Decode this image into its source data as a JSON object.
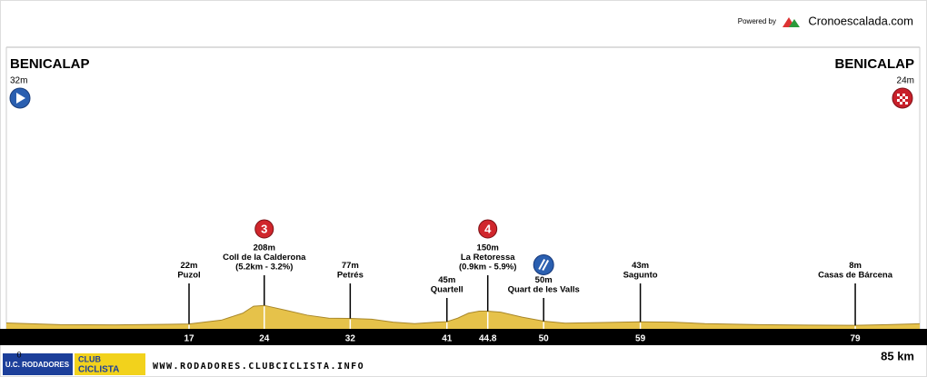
{
  "chart_data": {
    "type": "area",
    "powered_by": "Powered by",
    "brand": "Cronoescalada.com",
    "start": {
      "name": "BENICALAP",
      "label": "32m"
    },
    "finish": {
      "name": "BENICALAP",
      "label": "24m"
    },
    "color": "#e6c24a",
    "x": [
      0,
      5,
      10,
      15,
      17,
      20,
      22,
      23,
      24,
      26,
      28,
      30,
      32,
      34,
      36,
      38,
      40,
      41,
      42,
      43,
      44,
      44.8,
      46,
      48,
      50,
      52,
      55,
      59,
      62,
      65,
      70,
      75,
      79,
      82,
      85
    ],
    "values": [
      32,
      15,
      12,
      18,
      22,
      60,
      130,
      200,
      208,
      160,
      110,
      80,
      77,
      70,
      40,
      25,
      40,
      45,
      80,
      130,
      150,
      150,
      140,
      90,
      50,
      30,
      35,
      43,
      40,
      25,
      15,
      10,
      8,
      15,
      24
    ],
    "xlim": [
      0,
      85
    ],
    "ylim": [
      0,
      2800
    ],
    "xticks": [
      17,
      24,
      32,
      41,
      44.8,
      50,
      59,
      79
    ],
    "x_start": 0,
    "total": {
      "value": 85,
      "label": "85 km"
    },
    "points": [
      {
        "x": 17,
        "value": 22,
        "value_label": "22m",
        "name": "Puzol"
      },
      {
        "x": 24,
        "value": 208,
        "value_label": "208m",
        "name": "Coll de la Calderona",
        "detail": "(5.2km - 3.2%)",
        "category": 3
      },
      {
        "x": 32,
        "value": 77,
        "value_label": "77m",
        "name": "Petrés"
      },
      {
        "x": 41,
        "value": 45,
        "value_label": "45m",
        "name": "Quartell"
      },
      {
        "x": 44.8,
        "value": 150,
        "value_label": "150m",
        "name": "La Retoressa",
        "detail": "(0.9km - 5.9%)",
        "category": 4
      },
      {
        "x": 50,
        "value": 50,
        "value_label": "50m",
        "name": "Quart de les Valls",
        "sprint": true
      },
      {
        "x": 59,
        "value": 43,
        "value_label": "43m",
        "name": "Sagunto"
      },
      {
        "x": 79,
        "value": 8,
        "value_label": "8m",
        "name": "Casas de Bárcena"
      }
    ],
    "logo_left": "U.C. RODADORES",
    "logo_club": "CLUB",
    "logo_ciclista": "CICLISTA",
    "footer": "WWW.RODADORES.CLUBCICLISTA.INFO"
  }
}
